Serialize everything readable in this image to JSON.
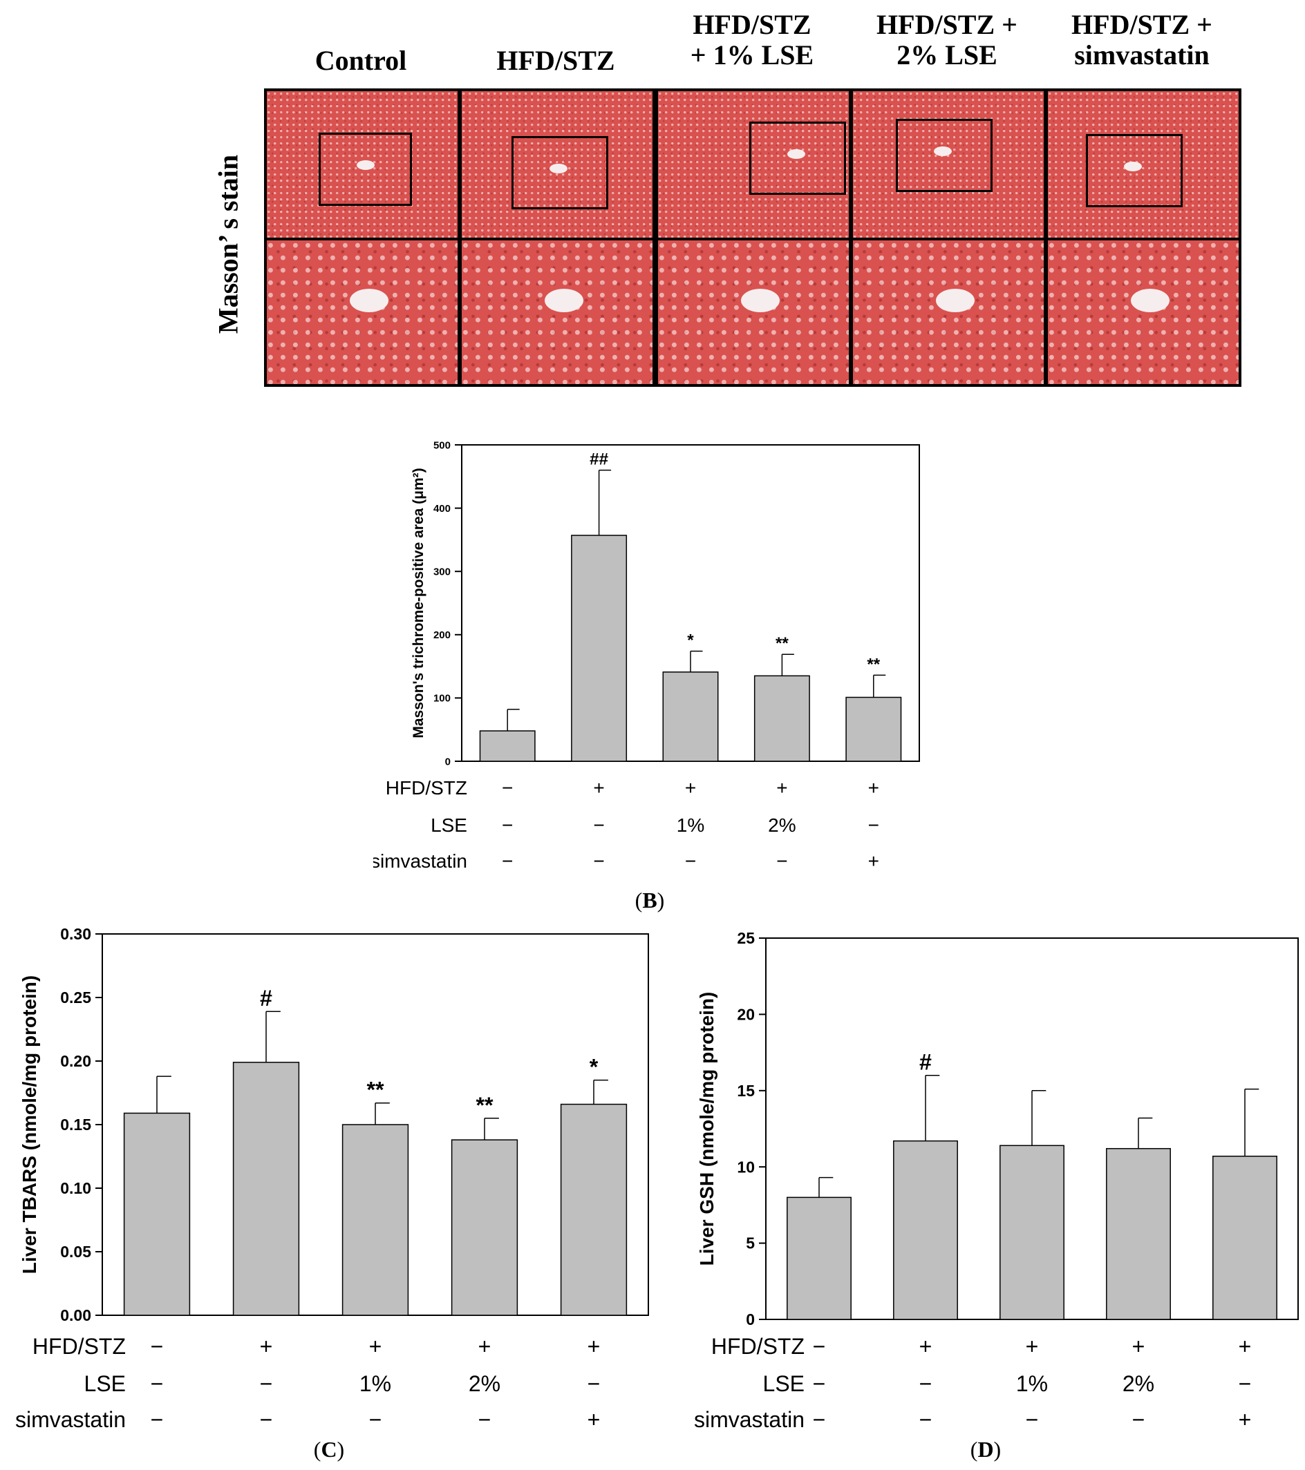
{
  "histology": {
    "column_labels": [
      [
        "Control"
      ],
      [
        "HFD/STZ"
      ],
      [
        "HFD/STZ",
        "+ 1% LSE"
      ],
      [
        "HFD/STZ +",
        "2% LSE"
      ],
      [
        "HFD/STZ +",
        "simvastatin"
      ]
    ],
    "row_label": "Masson’ s stain",
    "tile_color": "#d9524f",
    "tile_color_dark": "#b73a3a"
  },
  "treatment_table": {
    "row_labels": [
      "HFD/STZ",
      "LSE",
      "simvastatin"
    ],
    "rows": [
      [
        "−",
        "+",
        "+",
        "+",
        "+"
      ],
      [
        "−",
        "−",
        "1%",
        "2%",
        "−"
      ],
      [
        "−",
        "−",
        "−",
        "−",
        "+"
      ]
    ]
  },
  "panels": {
    "B": "B",
    "C": "C",
    "D": "D"
  },
  "chart_data": [
    {
      "id": "B",
      "type": "bar",
      "ylabel": "Masson's trichrome-positive area (μm²)",
      "ylim": [
        0,
        500
      ],
      "yticks": [
        "0",
        "100",
        "200",
        "300",
        "400",
        "500"
      ],
      "categories": [
        "1",
        "2",
        "3",
        "4",
        "5"
      ],
      "values": [
        48,
        357,
        141,
        135,
        101
      ],
      "errors": [
        34,
        103,
        33,
        34,
        35
      ],
      "annotations": [
        "",
        "##",
        "*",
        "**",
        "**"
      ],
      "bar_color": "#bfbfbf"
    },
    {
      "id": "C",
      "type": "bar",
      "ylabel": "Liver TBARS (nmole/mg protein)",
      "ylim": [
        0,
        0.3
      ],
      "yticks": [
        "0.00",
        "0.05",
        "0.10",
        "0.15",
        "0.20",
        "0.25",
        "0.30"
      ],
      "categories": [
        "1",
        "2",
        "3",
        "4",
        "5"
      ],
      "values": [
        0.159,
        0.199,
        0.15,
        0.138,
        0.166
      ],
      "errors": [
        0.029,
        0.04,
        0.017,
        0.017,
        0.019
      ],
      "annotations": [
        "",
        "#",
        "**",
        "**",
        "*"
      ],
      "bar_color": "#bfbfbf"
    },
    {
      "id": "D",
      "type": "bar",
      "ylabel": "Liver GSH (nmole/mg protein)",
      "ylim": [
        0,
        25
      ],
      "yticks": [
        "0",
        "5",
        "10",
        "15",
        "20",
        "25"
      ],
      "categories": [
        "1",
        "2",
        "3",
        "4",
        "5"
      ],
      "values": [
        8.0,
        11.7,
        11.4,
        11.2,
        10.7
      ],
      "errors": [
        1.3,
        4.3,
        3.6,
        2.0,
        4.4
      ],
      "annotations": [
        "",
        "#",
        "",
        "",
        ""
      ],
      "bar_color": "#bfbfbf"
    }
  ]
}
